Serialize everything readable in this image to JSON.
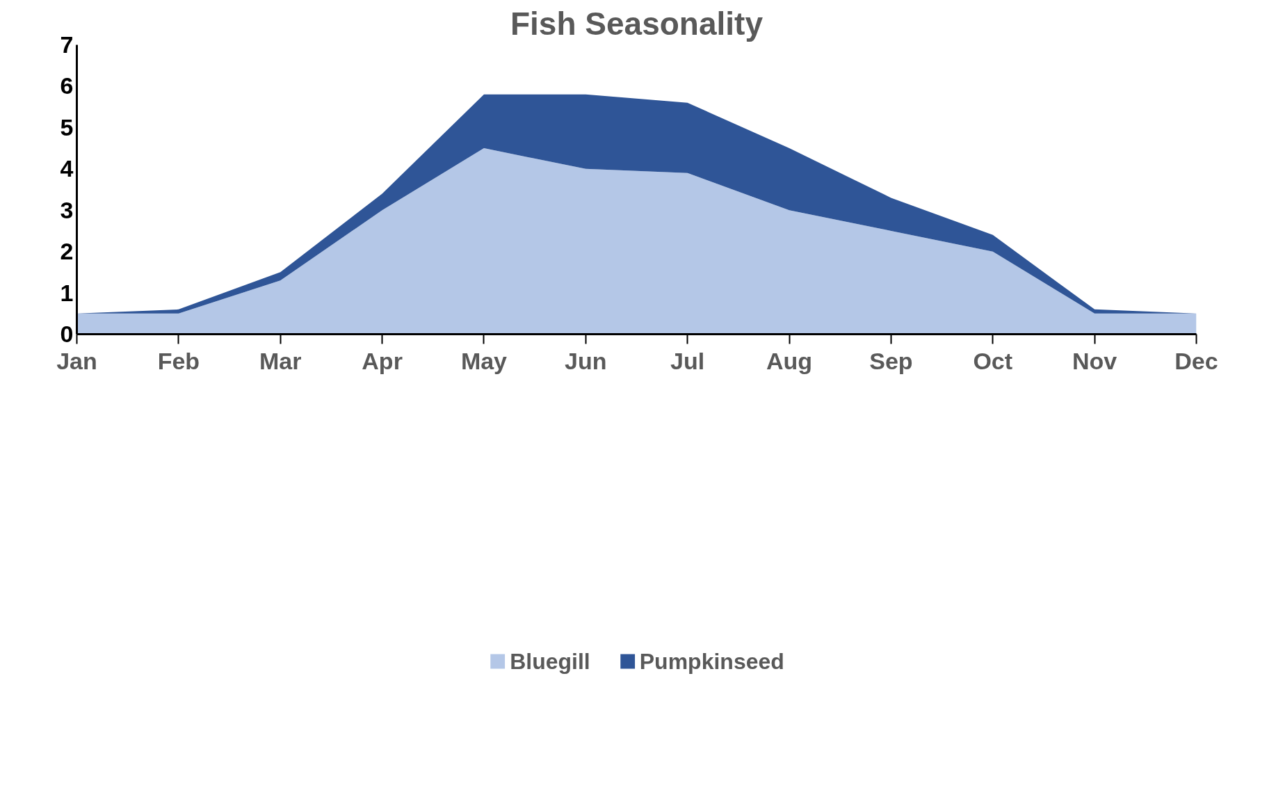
{
  "chart_data": {
    "type": "area",
    "title": "Fish Seasonality",
    "stacked": true,
    "categories": [
      "Jan",
      "Feb",
      "Mar",
      "Apr",
      "May",
      "Jun",
      "Jul",
      "Aug",
      "Sep",
      "Oct",
      "Nov",
      "Dec"
    ],
    "series": [
      {
        "name": "Bluegill",
        "color": "#b4c7e7",
        "values": [
          0.5,
          0.5,
          1.3,
          3.0,
          4.5,
          4.0,
          3.9,
          3.0,
          2.5,
          2.0,
          0.5,
          0.5
        ]
      },
      {
        "name": "Pumpkinseed",
        "color": "#2f5597",
        "values": [
          0,
          0.1,
          0.2,
          0.4,
          1.3,
          1.8,
          1.7,
          1.5,
          0.8,
          0.4,
          0.1,
          0
        ]
      }
    ],
    "ylim": [
      0,
      7
    ],
    "yticks": [
      0,
      1,
      2,
      3,
      4,
      5,
      6,
      7
    ],
    "grid": false,
    "legend": "bottom"
  }
}
